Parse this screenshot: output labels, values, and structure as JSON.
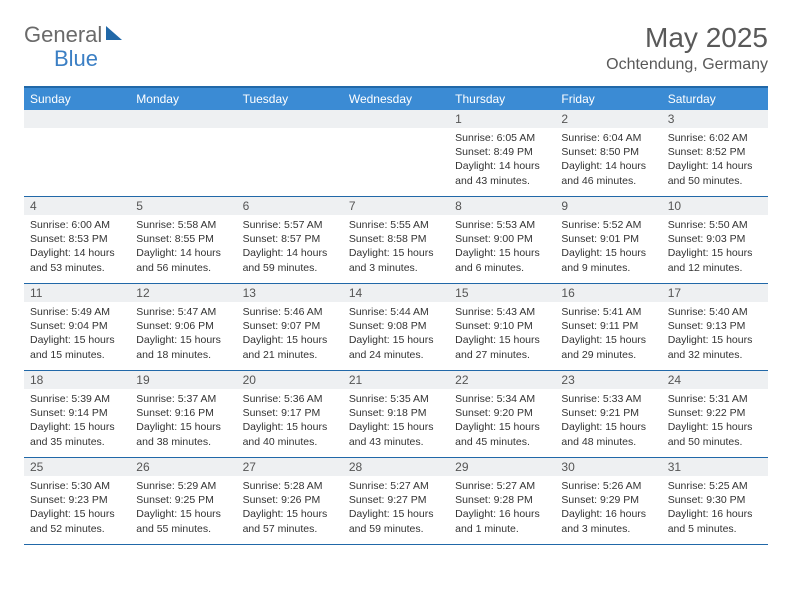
{
  "brand": {
    "part1": "General",
    "part2": "Blue"
  },
  "title": "May 2025",
  "location": "Ochtendung, Germany",
  "colors": {
    "header_blue": "#3b8bd4",
    "rule_blue": "#2168a8",
    "band_gray": "#eef0f2",
    "text_gray": "#595959"
  },
  "dow": [
    "Sunday",
    "Monday",
    "Tuesday",
    "Wednesday",
    "Thursday",
    "Friday",
    "Saturday"
  ],
  "weeks": [
    [
      null,
      null,
      null,
      null,
      {
        "n": "1",
        "sr": "6:05 AM",
        "ss": "8:49 PM",
        "dl": "14 hours and 43 minutes."
      },
      {
        "n": "2",
        "sr": "6:04 AM",
        "ss": "8:50 PM",
        "dl": "14 hours and 46 minutes."
      },
      {
        "n": "3",
        "sr": "6:02 AM",
        "ss": "8:52 PM",
        "dl": "14 hours and 50 minutes."
      }
    ],
    [
      {
        "n": "4",
        "sr": "6:00 AM",
        "ss": "8:53 PM",
        "dl": "14 hours and 53 minutes."
      },
      {
        "n": "5",
        "sr": "5:58 AM",
        "ss": "8:55 PM",
        "dl": "14 hours and 56 minutes."
      },
      {
        "n": "6",
        "sr": "5:57 AM",
        "ss": "8:57 PM",
        "dl": "14 hours and 59 minutes."
      },
      {
        "n": "7",
        "sr": "5:55 AM",
        "ss": "8:58 PM",
        "dl": "15 hours and 3 minutes."
      },
      {
        "n": "8",
        "sr": "5:53 AM",
        "ss": "9:00 PM",
        "dl": "15 hours and 6 minutes."
      },
      {
        "n": "9",
        "sr": "5:52 AM",
        "ss": "9:01 PM",
        "dl": "15 hours and 9 minutes."
      },
      {
        "n": "10",
        "sr": "5:50 AM",
        "ss": "9:03 PM",
        "dl": "15 hours and 12 minutes."
      }
    ],
    [
      {
        "n": "11",
        "sr": "5:49 AM",
        "ss": "9:04 PM",
        "dl": "15 hours and 15 minutes."
      },
      {
        "n": "12",
        "sr": "5:47 AM",
        "ss": "9:06 PM",
        "dl": "15 hours and 18 minutes."
      },
      {
        "n": "13",
        "sr": "5:46 AM",
        "ss": "9:07 PM",
        "dl": "15 hours and 21 minutes."
      },
      {
        "n": "14",
        "sr": "5:44 AM",
        "ss": "9:08 PM",
        "dl": "15 hours and 24 minutes."
      },
      {
        "n": "15",
        "sr": "5:43 AM",
        "ss": "9:10 PM",
        "dl": "15 hours and 27 minutes."
      },
      {
        "n": "16",
        "sr": "5:41 AM",
        "ss": "9:11 PM",
        "dl": "15 hours and 29 minutes."
      },
      {
        "n": "17",
        "sr": "5:40 AM",
        "ss": "9:13 PM",
        "dl": "15 hours and 32 minutes."
      }
    ],
    [
      {
        "n": "18",
        "sr": "5:39 AM",
        "ss": "9:14 PM",
        "dl": "15 hours and 35 minutes."
      },
      {
        "n": "19",
        "sr": "5:37 AM",
        "ss": "9:16 PM",
        "dl": "15 hours and 38 minutes."
      },
      {
        "n": "20",
        "sr": "5:36 AM",
        "ss": "9:17 PM",
        "dl": "15 hours and 40 minutes."
      },
      {
        "n": "21",
        "sr": "5:35 AM",
        "ss": "9:18 PM",
        "dl": "15 hours and 43 minutes."
      },
      {
        "n": "22",
        "sr": "5:34 AM",
        "ss": "9:20 PM",
        "dl": "15 hours and 45 minutes."
      },
      {
        "n": "23",
        "sr": "5:33 AM",
        "ss": "9:21 PM",
        "dl": "15 hours and 48 minutes."
      },
      {
        "n": "24",
        "sr": "5:31 AM",
        "ss": "9:22 PM",
        "dl": "15 hours and 50 minutes."
      }
    ],
    [
      {
        "n": "25",
        "sr": "5:30 AM",
        "ss": "9:23 PM",
        "dl": "15 hours and 52 minutes."
      },
      {
        "n": "26",
        "sr": "5:29 AM",
        "ss": "9:25 PM",
        "dl": "15 hours and 55 minutes."
      },
      {
        "n": "27",
        "sr": "5:28 AM",
        "ss": "9:26 PM",
        "dl": "15 hours and 57 minutes."
      },
      {
        "n": "28",
        "sr": "5:27 AM",
        "ss": "9:27 PM",
        "dl": "15 hours and 59 minutes."
      },
      {
        "n": "29",
        "sr": "5:27 AM",
        "ss": "9:28 PM",
        "dl": "16 hours and 1 minute."
      },
      {
        "n": "30",
        "sr": "5:26 AM",
        "ss": "9:29 PM",
        "dl": "16 hours and 3 minutes."
      },
      {
        "n": "31",
        "sr": "5:25 AM",
        "ss": "9:30 PM",
        "dl": "16 hours and 5 minutes."
      }
    ]
  ],
  "labels": {
    "sunrise": "Sunrise: ",
    "sunset": "Sunset: ",
    "daylight": "Daylight: "
  }
}
